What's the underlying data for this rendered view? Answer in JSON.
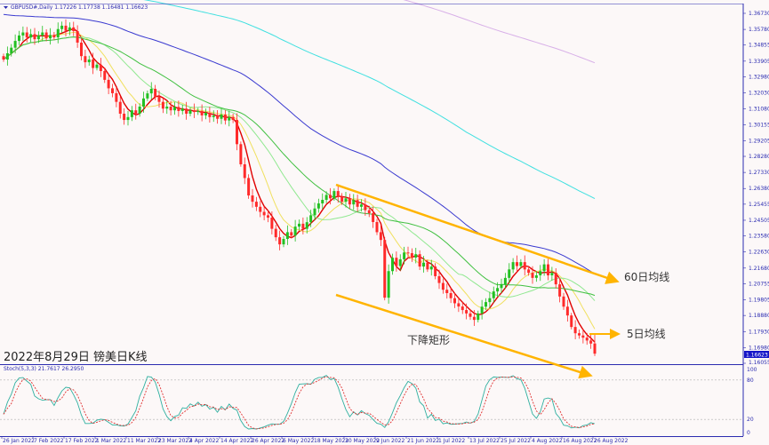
{
  "chart_header": "GBPUSD#,Daily  1.17226 1.17738 1.16481 1.16623",
  "stoch_header": "Stoch(5,3,3) 21.7617 26.2950",
  "overlay_title": "2022年8月29日 镑美日K线",
  "annotations": {
    "ma60": "60日均线",
    "ma5": "5日均线",
    "channel": "下降矩形"
  },
  "current_price": "1.16623",
  "colors": {
    "up": "#22c022",
    "down": "#ff2a2a",
    "axis": "#2b2bb0",
    "channel": "#ffb400",
    "ma5": "#e00000",
    "ma10": "#f0e060",
    "ma20": "#90e890",
    "ma30": "#40c040",
    "ma60": "#3a3ad0",
    "ma120": "#40e0e0",
    "ma240": "#d8b0e8",
    "stoch_k": "#30b0a0",
    "stoch_d": "#e03030"
  },
  "chart_data": {
    "type": "candlestick",
    "symbol": "GBPUSD#",
    "timeframe": "Daily",
    "ylim": [
      1.16055,
      1.3673
    ],
    "y_ticks": [
      "1.36730",
      "1.35780",
      "1.34855",
      "1.33905",
      "1.32980",
      "1.32030",
      "1.31080",
      "1.30155",
      "1.29205",
      "1.28280",
      "1.27330",
      "1.26380",
      "1.25455",
      "1.24505",
      "1.23580",
      "1.22630",
      "1.21680",
      "1.20755",
      "1.19805",
      "1.18880",
      "1.17930",
      "1.16980",
      "1.16055"
    ],
    "x_ticks": [
      "26 Jan 2022",
      "7 Feb 2022",
      "17 Feb 2022",
      "1 Mar 2022",
      "11 Mar 2022",
      "23 Mar 2022",
      "4 Apr 2022",
      "14 Apr 2022",
      "26 Apr 2022",
      "6 May 2022",
      "18 May 2022",
      "30 May 2022",
      "9 Jun 2022",
      "21 Jun 2022",
      "1 Jul 2022",
      "13 Jul 2022",
      "25 Jul 2022",
      "4 Aug 2022",
      "16 Aug 2022",
      "26 Aug 2022"
    ],
    "moving_averages": [
      5,
      10,
      20,
      30,
      60,
      120,
      240
    ],
    "stoch_levels": [
      "100",
      "80",
      "20",
      "0"
    ],
    "stoch_params": [
      5,
      3,
      3
    ],
    "last_bar": {
      "open": 1.17226,
      "high": 1.17738,
      "low": 1.16481,
      "close": 1.16623
    },
    "closes": [
      1.34,
      1.3437,
      1.347,
      1.351,
      1.3542,
      1.356,
      1.353,
      1.355,
      1.352,
      1.3542,
      1.356,
      1.3525,
      1.3545,
      1.3531,
      1.358,
      1.36,
      1.357,
      1.359,
      1.3568,
      1.35,
      1.342,
      1.3384,
      1.34,
      1.335,
      1.337,
      1.3332,
      1.328,
      1.323,
      1.3201,
      1.315,
      1.308,
      1.3043,
      1.306,
      1.31,
      1.308,
      1.3122,
      1.317,
      1.32,
      1.3227,
      1.318,
      1.315,
      1.311,
      1.3122,
      1.31,
      1.312,
      1.3096,
      1.311,
      1.308,
      1.31,
      1.309,
      1.3096,
      1.307,
      1.3085,
      1.306,
      1.3069,
      1.305,
      1.3075,
      1.304,
      1.306,
      1.3043,
      1.29,
      1.2781,
      1.27,
      1.2597,
      1.256,
      1.253,
      1.25,
      1.248,
      1.2466,
      1.24,
      1.235,
      1.2308,
      1.234,
      1.238,
      1.236,
      1.2413,
      1.243,
      1.24,
      1.2439,
      1.248,
      1.252,
      1.255,
      1.2571,
      1.26,
      1.258,
      1.2623,
      1.259,
      1.256,
      1.258,
      1.2544,
      1.257,
      1.253,
      1.2544,
      1.251,
      1.2492,
      1.244,
      1.238,
      1.2334,
      1.1993,
      1.215,
      1.2229,
      1.218,
      1.222,
      1.226,
      1.2256,
      1.223,
      1.225,
      1.2177,
      1.22,
      1.216,
      1.2177,
      1.212,
      1.208,
      1.204,
      1.202,
      1.199,
      1.196,
      1.1941,
      1.192,
      1.19,
      1.188,
      1.1862,
      1.19,
      1.194,
      1.1967,
      1.199,
      1.203,
      1.205,
      1.2072,
      1.211,
      1.216,
      1.2203,
      1.218,
      1.2203,
      1.216,
      1.214,
      1.211,
      1.2125,
      1.215,
      1.219,
      1.2125,
      1.214,
      1.2072,
      1.2,
      1.194,
      1.1888,
      1.182,
      1.1783,
      1.177,
      1.1757,
      1.174,
      1.1722,
      1.16623
    ]
  }
}
